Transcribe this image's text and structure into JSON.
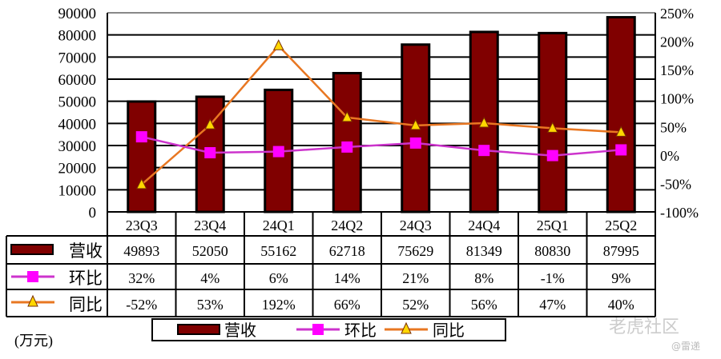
{
  "chart_data": {
    "type": "bar",
    "categories": [
      "23Q3",
      "23Q4",
      "24Q1",
      "24Q2",
      "24Q3",
      "24Q4",
      "25Q1",
      "25Q2"
    ],
    "series": [
      {
        "name": "营收",
        "kind": "bar",
        "axis": "left",
        "values": [
          49893,
          52050,
          55162,
          62718,
          75629,
          81349,
          80830,
          87995
        ],
        "labels": [
          "49893",
          "52050",
          "55162",
          "62718",
          "75629",
          "81349",
          "80830",
          "87995"
        ]
      },
      {
        "name": "环比",
        "kind": "line",
        "axis": "right",
        "values": [
          32,
          4,
          6,
          14,
          21,
          8,
          -1,
          9
        ],
        "labels": [
          "32%",
          "4%",
          "6%",
          "14%",
          "21%",
          "8%",
          "-1%",
          "9%"
        ]
      },
      {
        "name": "同比",
        "kind": "line",
        "axis": "right",
        "values": [
          -52,
          53,
          192,
          66,
          52,
          56,
          47,
          40
        ],
        "labels": [
          "-52%",
          "53%",
          "192%",
          "66%",
          "52%",
          "56%",
          "47%",
          "40%"
        ]
      }
    ],
    "left_axis": {
      "ylim": [
        0,
        90000
      ],
      "ticks": [
        "0",
        "10000",
        "20000",
        "30000",
        "40000",
        "50000",
        "60000",
        "70000",
        "80000",
        "90000"
      ]
    },
    "right_axis": {
      "ylim": [
        -100,
        250
      ],
      "ticks": [
        "-100%",
        "-50%",
        "0%",
        "50%",
        "100%",
        "150%",
        "200%",
        "250%"
      ]
    },
    "unit_label": "(万元)",
    "legend": [
      "营收",
      "环比",
      "同比"
    ],
    "legend_position": "bottom",
    "grid": true,
    "colors": {
      "bar": "#800000",
      "mom": "#ff00ff",
      "mom_line": "#cc33cc",
      "yoy_line": "#e87722",
      "yoy_marker": "#ffd700"
    }
  },
  "watermark": {
    "text": "老虎社区",
    "credit": "@雷递"
  }
}
